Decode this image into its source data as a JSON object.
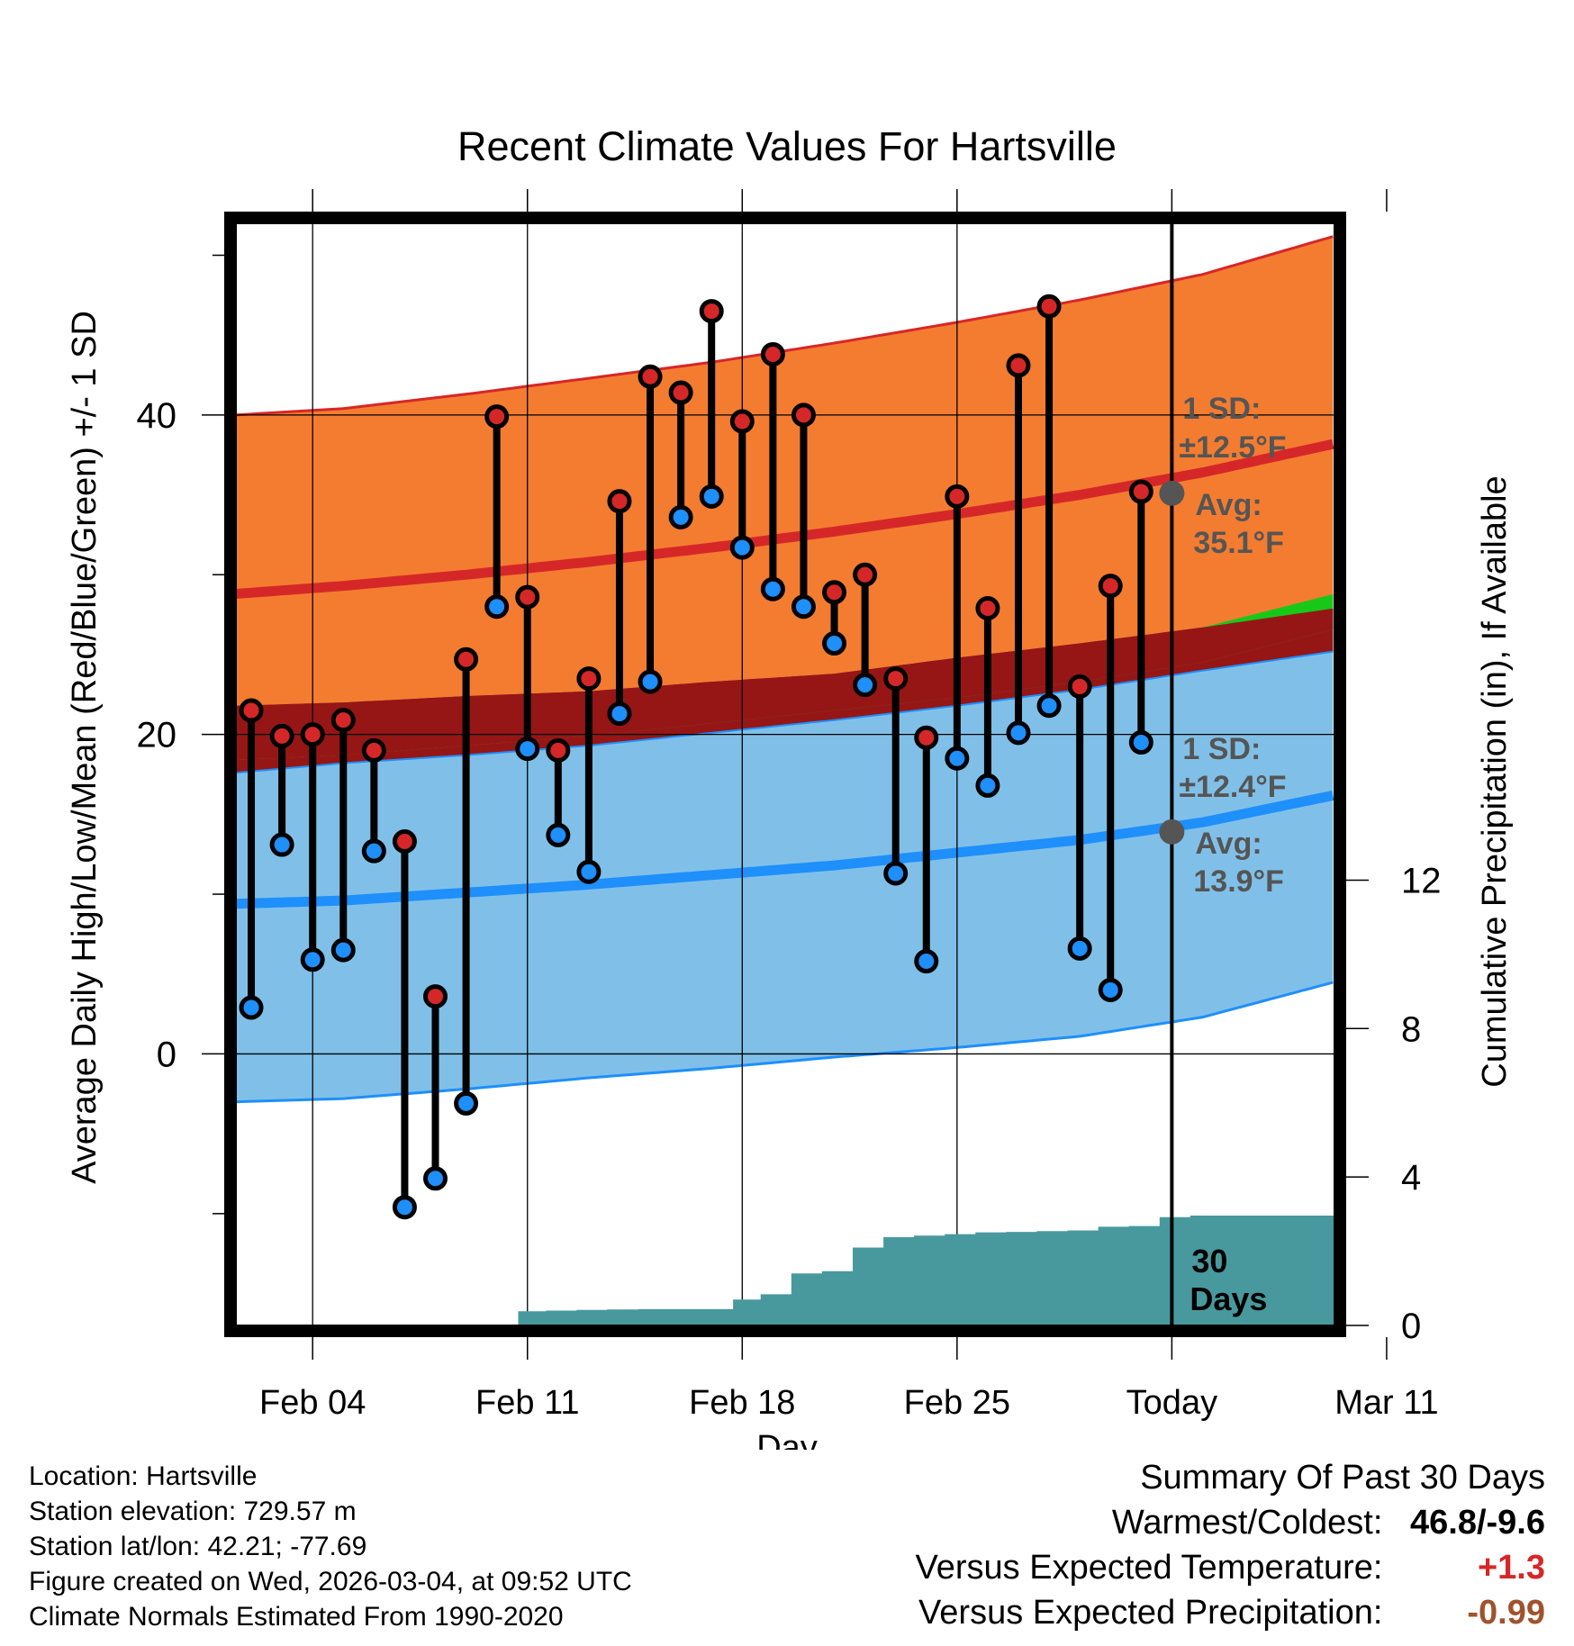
{
  "chart_data": {
    "type": "line",
    "title": "Recent Climate Values For Hartsville",
    "xlabel": "Day",
    "ylabel_left": "Average Daily High/Low/Mean (Red/Blue/Green) +/- 1 SD",
    "ylabel_right": "Cumulative Precipitation (in), If Available",
    "x_range": [
      1.5,
      37.3
    ],
    "ylim": [
      -17,
      52
    ],
    "y2lim": [
      0,
      29.7
    ],
    "x_ticks": [
      {
        "day": 4,
        "label": "Feb 04"
      },
      {
        "day": 11,
        "label": "Feb 11"
      },
      {
        "day": 18,
        "label": "Feb 18"
      },
      {
        "day": 25,
        "label": "Feb 25"
      },
      {
        "day": 32,
        "label": "Today"
      },
      {
        "day": 39,
        "label": "Mar 11"
      }
    ],
    "today_day": 32,
    "y_ticks": [
      {
        "value": 0,
        "label": "0"
      },
      {
        "value": 20,
        "label": "20"
      },
      {
        "value": 40,
        "label": "40"
      }
    ],
    "y_minor_ticks": [
      -10,
      10,
      30,
      50
    ],
    "y2_ticks": [
      {
        "value": 0,
        "label": "0"
      },
      {
        "value": 4,
        "label": "4"
      },
      {
        "value": 8,
        "label": "8"
      },
      {
        "value": 12,
        "label": "12"
      }
    ],
    "normals": {
      "days": [
        1.5,
        5,
        9,
        13,
        17,
        21,
        25,
        29,
        33,
        37.3
      ],
      "high_mean": [
        28.8,
        29.3,
        30.0,
        30.8,
        31.7,
        32.7,
        33.8,
        35.0,
        36.4,
        38.2
      ],
      "high_upper": [
        40.0,
        40.4,
        41.3,
        42.3,
        43.3,
        44.5,
        45.8,
        47.2,
        48.8,
        51.2
      ],
      "low_mean": [
        9.4,
        9.6,
        10.1,
        10.6,
        11.2,
        11.8,
        12.6,
        13.4,
        14.5,
        16.2
      ],
      "low_lower": [
        -3.0,
        -2.8,
        -2.2,
        -1.5,
        -0.9,
        -0.2,
        0.4,
        1.1,
        2.3,
        4.5
      ],
      "avg_mean": [
        19.5,
        19.8,
        20.4,
        21.0,
        21.8,
        22.6,
        23.4,
        24.4,
        25.6,
        27.7
      ]
    },
    "series": [
      {
        "name": "Daily High",
        "days": [
          2,
          3,
          4,
          5,
          6,
          7,
          8,
          9,
          10,
          11,
          12,
          13,
          14,
          15,
          16,
          17,
          18,
          19,
          20,
          21,
          22,
          23,
          24,
          25,
          26,
          27,
          28,
          29,
          30,
          31
        ],
        "values": [
          21.5,
          19.9,
          20.0,
          20.9,
          19.0,
          13.3,
          3.6,
          24.7,
          39.9,
          28.6,
          19.0,
          23.5,
          34.6,
          42.4,
          41.4,
          46.5,
          39.6,
          43.8,
          40.0,
          28.9,
          30.0,
          23.5,
          19.8,
          34.9,
          27.9,
          43.1,
          46.8,
          23.0,
          29.3,
          35.2
        ]
      },
      {
        "name": "Daily Low",
        "days": [
          2,
          3,
          4,
          5,
          6,
          7,
          8,
          9,
          10,
          11,
          12,
          13,
          14,
          15,
          16,
          17,
          18,
          19,
          20,
          21,
          22,
          23,
          24,
          25,
          26,
          27,
          28,
          29,
          30,
          31
        ],
        "values": [
          2.9,
          13.1,
          5.9,
          6.5,
          12.7,
          -9.6,
          -7.8,
          -3.1,
          28.0,
          19.1,
          13.7,
          11.4,
          21.3,
          23.3,
          33.6,
          34.9,
          31.7,
          29.1,
          28.0,
          25.7,
          23.1,
          11.3,
          5.8,
          18.5,
          16.8,
          20.1,
          21.8,
          6.6,
          4.0,
          19.5
        ]
      },
      {
        "name": "Cumulative Precipitation",
        "days": [
          9.8,
          10.7,
          11.6,
          12.6,
          13.6,
          14.6,
          15.6,
          16.6,
          17.7,
          18.6,
          19.6,
          20.6,
          21.6,
          22.6,
          23.6,
          24.6,
          25.6,
          26.6,
          27.6,
          28.6,
          29.6,
          30.6,
          31.6,
          32.6,
          33.6,
          34.6,
          35.6,
          36.6,
          37.3
        ],
        "values": [
          0.0,
          0.38,
          0.4,
          0.42,
          0.43,
          0.44,
          0.44,
          0.44,
          0.7,
          0.84,
          1.4,
          1.46,
          2.1,
          2.38,
          2.42,
          2.46,
          2.51,
          2.52,
          2.54,
          2.56,
          2.66,
          2.68,
          2.92,
          2.96,
          2.96,
          2.96,
          2.96,
          2.96,
          2.96
        ]
      }
    ],
    "annotations": {
      "high_sd_line1": "1 SD:",
      "high_sd_line2": "±12.5°F",
      "high_avg_line1": "Avg:",
      "high_avg_line2": "35.1°F",
      "high_avg_value": 35.1,
      "low_sd_line1": "1 SD:",
      "low_sd_line2": "±12.4°F",
      "low_avg_line1": "Avg:",
      "low_avg_line2": "13.9°F",
      "low_avg_value": 13.9,
      "days_label_line1": "30",
      "days_label_line2": "Days"
    },
    "colors": {
      "high_band": "#f47c30",
      "high_line": "#d62728",
      "low_band": "#80c0e8",
      "low_line": "#1e8ffb",
      "avg_band": "#18c818",
      "overlap": "#961616",
      "precip": "#48999e",
      "high_dot": "#d62728",
      "low_dot": "#1e8ffb",
      "annotation": "#555555"
    }
  },
  "info": {
    "location": "Location: Hartsville",
    "elevation": "Station elevation: 729.57 m",
    "latlon": "Station lat/lon: 42.21; -77.69",
    "created": "Figure created on Wed, 2026-03-04, at 09:52 UTC",
    "normals": "Climate Normals Estimated From 1990-2020"
  },
  "summary": {
    "title": "Summary Of Past 30 Days",
    "warmest_label": "Warmest/Coldest:",
    "warmest_value": "46.8/-9.6",
    "temp_label": "Versus Expected Temperature:",
    "temp_value": "+1.3",
    "temp_color": "#d62728",
    "precip_label": "Versus Expected Precipitation:",
    "precip_value": "-0.99",
    "precip_color": "#a0522d"
  }
}
